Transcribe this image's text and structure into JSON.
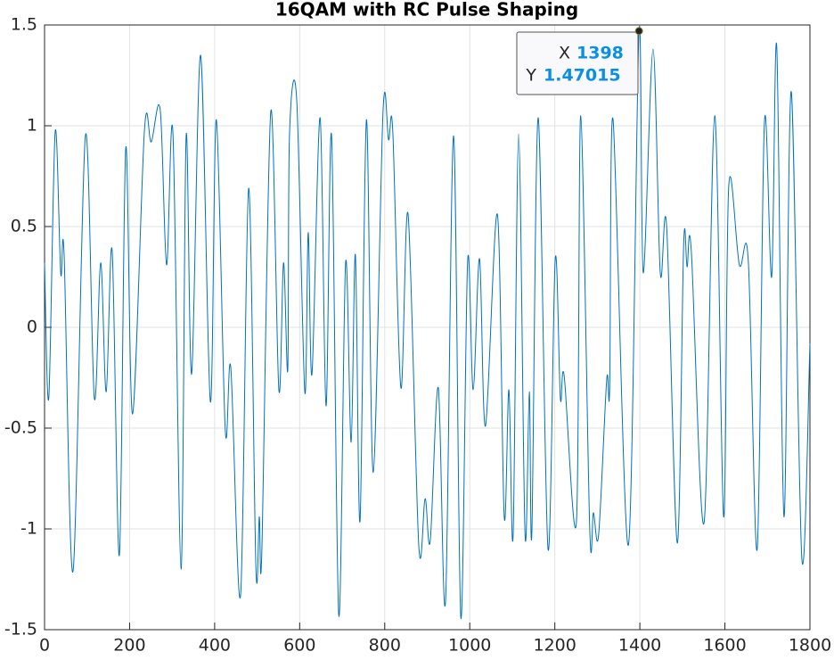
{
  "chart_data": {
    "type": "line",
    "title": "16QAM with RC Pulse Shaping",
    "x": [
      0,
      10,
      25,
      38,
      46,
      67,
      96,
      117,
      132,
      145,
      159,
      176,
      191,
      207,
      235,
      251,
      272,
      287,
      302,
      321,
      333,
      346,
      367,
      390,
      404,
      425,
      438,
      461,
      480,
      497,
      505,
      511,
      532,
      551,
      562,
      572,
      576,
      593,
      612,
      620,
      629,
      648,
      662,
      675,
      692,
      708,
      721,
      731,
      742,
      757,
      773,
      796,
      809,
      819,
      838,
      855,
      880,
      895,
      907,
      926,
      943,
      962,
      979,
      995,
      1008,
      1023,
      1037,
      1065,
      1081,
      1092,
      1102,
      1115,
      1130,
      1140,
      1146,
      1161,
      1184,
      1201,
      1213,
      1222,
      1251,
      1261,
      1282,
      1291,
      1303,
      1322,
      1329,
      1337,
      1373,
      1398,
      1408,
      1431,
      1448,
      1463,
      1488,
      1503,
      1511,
      1521,
      1551,
      1576,
      1597,
      1609,
      1634,
      1655,
      1676,
      1693,
      1710,
      1722,
      1739,
      1756,
      1781,
      1800
    ],
    "series": [
      {
        "color": "#0072bd",
        "values": [
          0.32,
          -0.35,
          0.97,
          0.27,
          0.36,
          -1.21,
          0.95,
          -0.35,
          0.32,
          -0.32,
          0.38,
          -1.13,
          0.89,
          -0.43,
          0.98,
          0.92,
          1.08,
          0.31,
          0.96,
          -1.2,
          0.95,
          -0.23,
          1.35,
          -0.37,
          1.03,
          -0.51,
          -0.2,
          -1.33,
          0.69,
          -1.19,
          -0.94,
          -1.11,
          1.07,
          -0.31,
          0.32,
          -0.21,
          0.95,
          1.13,
          -0.32,
          0.47,
          -0.23,
          1.04,
          -0.39,
          0.95,
          -1.43,
          0.32,
          -0.57,
          0.36,
          -0.96,
          1.03,
          -0.72,
          1.07,
          0.93,
          0.97,
          -0.3,
          0.56,
          -1.08,
          -0.85,
          -1.06,
          -0.3,
          -1.36,
          0.95,
          -1.44,
          0.33,
          -0.31,
          0.34,
          -0.49,
          0.56,
          -0.94,
          -0.31,
          -1.03,
          0.96,
          -1.03,
          -0.32,
          -1.02,
          1.04,
          -1.1,
          0.34,
          -0.35,
          -0.24,
          -0.96,
          1.05,
          -0.99,
          -0.92,
          -1.03,
          -0.26,
          -0.3,
          1.03,
          -1.08,
          1.47015,
          0.27,
          1.38,
          0.27,
          0.5,
          -1.07,
          0.41,
          0.3,
          0.38,
          -0.97,
          1.05,
          -0.94,
          0.7,
          0.31,
          0.33,
          -1.1,
          1.02,
          0.25,
          1.39,
          -0.94,
          1.17,
          -1.15,
          -0.08
        ]
      }
    ],
    "xlim": [
      0,
      1800
    ],
    "xticks": [
      0,
      200,
      400,
      600,
      800,
      1000,
      1200,
      1400,
      1600,
      1800
    ],
    "ylim": [
      -1.5,
      1.5
    ],
    "yticks": [
      -1.5,
      -1,
      -0.5,
      0,
      0.5,
      1,
      1.5
    ],
    "grid": true,
    "datatip": {
      "x_label": "X",
      "x": 1398,
      "y_label": "Y",
      "y": 1.47015
    }
  }
}
